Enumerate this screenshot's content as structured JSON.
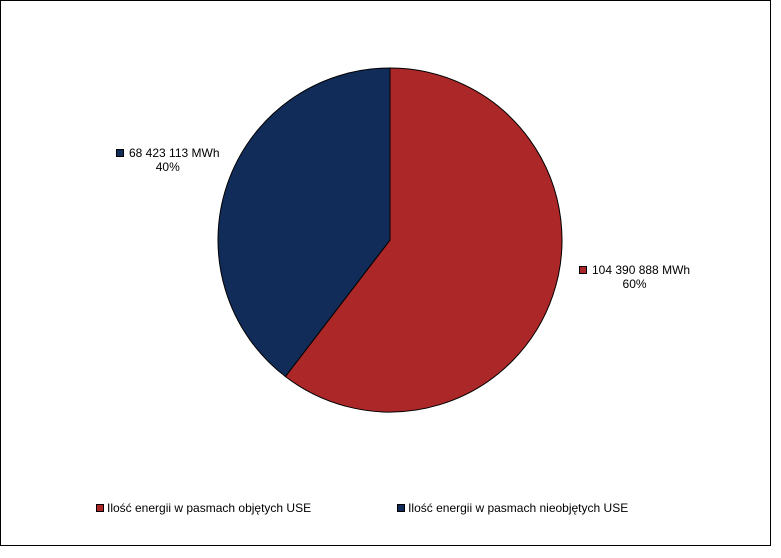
{
  "chart_data": {
    "type": "pie",
    "title": "",
    "series": [
      {
        "name": "Ilość energii w pasmach objętych USE",
        "value": 104390888,
        "label": "104 390 888 MWh",
        "percent_label": "60%",
        "color": "#AC2727"
      },
      {
        "name": "Ilość energii w pasmach nieobjętych USE",
        "value": 68423113,
        "label": "68 423 113 MWh",
        "percent_label": "40%",
        "color": "#122C5A"
      }
    ],
    "start_angle_deg": 0,
    "direction": "clockwise",
    "legend_position": "bottom"
  }
}
